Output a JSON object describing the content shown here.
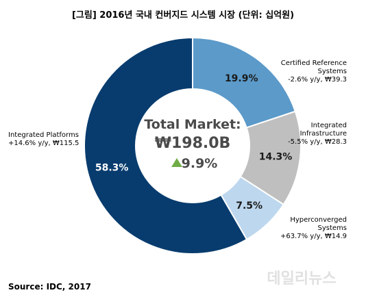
{
  "chart_data": {
    "type": "pie",
    "donut": true,
    "title": "[그림] 2016년 국내 컨버지드 시스템 시장 (단위: 십억원)",
    "unit": "십억원",
    "slices": [
      {
        "label_lines": [
          "Certified Reference",
          "Systems",
          "-2.6% y/y, ₩39.3"
        ],
        "percent_label": "19.9%",
        "value": 39.3,
        "color": "#5b9ac9"
      },
      {
        "label_lines": [
          "Integrated",
          "Infrastructure",
          "-5.5% y/y, ₩28.3"
        ],
        "percent_label": "14.3%",
        "value": 28.3,
        "color": "#bfbfbf"
      },
      {
        "label_lines": [
          "Hyperconverged",
          "Systems",
          "+63.7% y/y, ₩14.9"
        ],
        "percent_label": "7.5%",
        "value": 14.9,
        "color": "#bdd7ee"
      },
      {
        "label_lines": [
          "Integrated Platforms",
          "+14.6% y/y, ₩115.5"
        ],
        "percent_label": "58.3%",
        "value": 115.5,
        "color": "#083c6e"
      }
    ],
    "center": {
      "line1": "Total Market:",
      "line2": "₩198.0B",
      "line3": "9.9%",
      "arrow": "up-triangle",
      "arrow_color": "#70ad47"
    }
  },
  "source": "Source: IDC, 2017",
  "watermark": "데일리뉴스"
}
